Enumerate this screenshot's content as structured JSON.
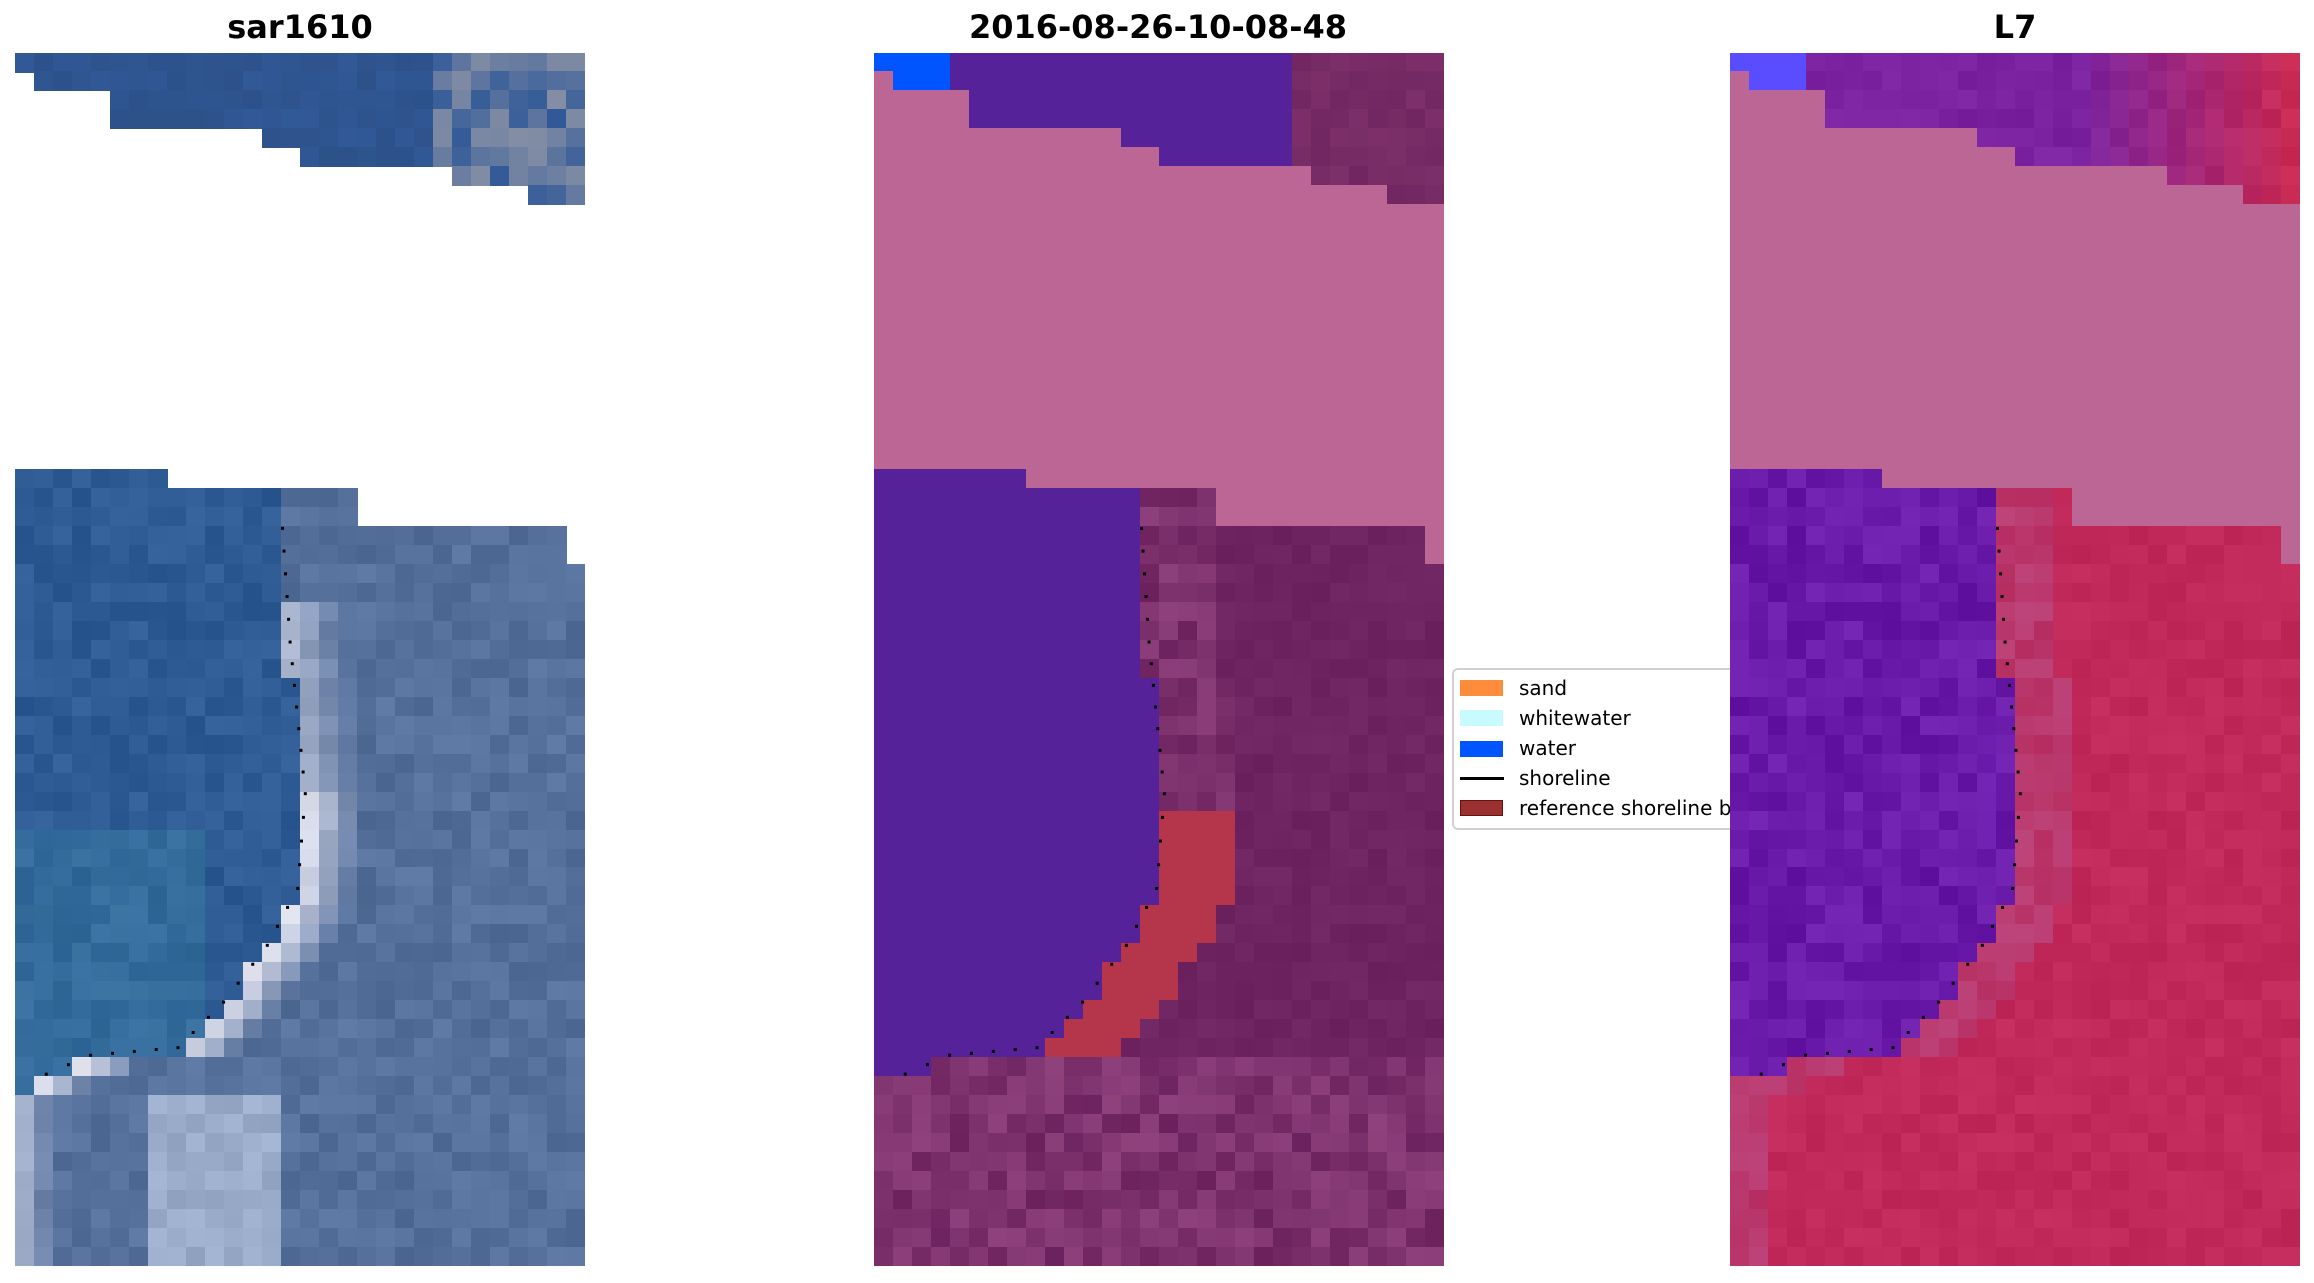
{
  "chart_data": {
    "type": "heatmap",
    "panels": [
      {
        "title": "sar1610",
        "kind": "rgb-image"
      },
      {
        "title": "2016-08-26-10-08-48",
        "kind": "classified-overlay"
      },
      {
        "title": "L7",
        "kind": "index-image"
      }
    ],
    "legend": {
      "placement": "center",
      "entries": [
        {
          "label": "sand",
          "color": "#ff8c3a",
          "marker": "patch"
        },
        {
          "label": "whitewater",
          "color": "#c8fbff",
          "marker": "patch"
        },
        {
          "label": "water",
          "color": "#0055ff",
          "marker": "patch"
        },
        {
          "label": "shoreline",
          "color": "#000000",
          "marker": "line"
        },
        {
          "label": "reference shoreline b",
          "color": "#9a3030",
          "marker": "patch"
        }
      ]
    },
    "colors": {
      "nodata_overlay": "#bb6694",
      "water_class": "#55229a",
      "land_class": "#6e2460",
      "reference_buffer": "#b5364a",
      "sar_water": "#2f5b94",
      "l7_water": "#6a1aa8",
      "l7_land": "#c0295a"
    },
    "grid_on": false,
    "axes_visible": false
  }
}
